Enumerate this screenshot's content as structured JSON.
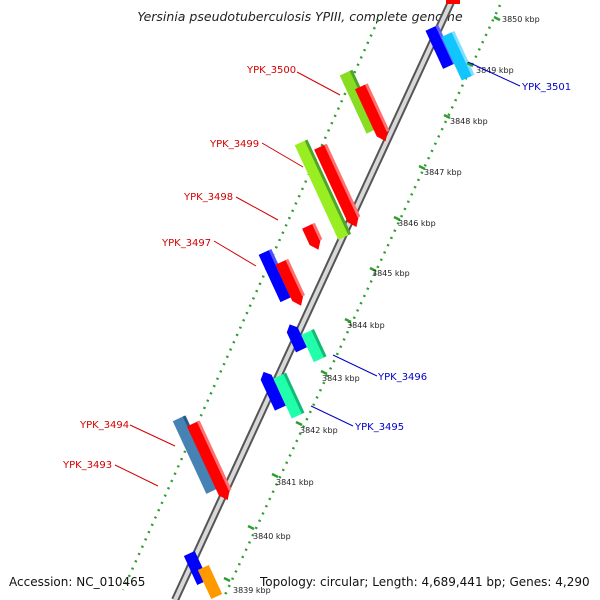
{
  "title": "Yersinia pseudotuberculosis YPIII, complete genome",
  "footer": {
    "accession": "Accession: NC_010465",
    "summary": "Topology: circular; Length: 4,689,441 bp; Genes: 4,290"
  },
  "ticks": [
    "3850 kbp",
    "3849 kbp",
    "3848 kbp",
    "3847 kbp",
    "3846 kbp",
    "3845 kbp",
    "3844 kbp",
    "3843 kbp",
    "3842 kbp",
    "3841 kbp",
    "3840 kbp",
    "3839 kbp"
  ],
  "genes_left": [
    "YPK_3500",
    "YPK_3499",
    "YPK_3498",
    "YPK_3497",
    "YPK_3494",
    "YPK_3493"
  ],
  "genes_right": [
    "YPK_3501",
    "YPK_3496",
    "YPK_3495"
  ],
  "colors": {
    "label_left": "#d40000",
    "label_right": "#0000c8",
    "forward": "#ff0000",
    "reverse": "#0000ff",
    "dotted": "#2e9e2e"
  }
}
